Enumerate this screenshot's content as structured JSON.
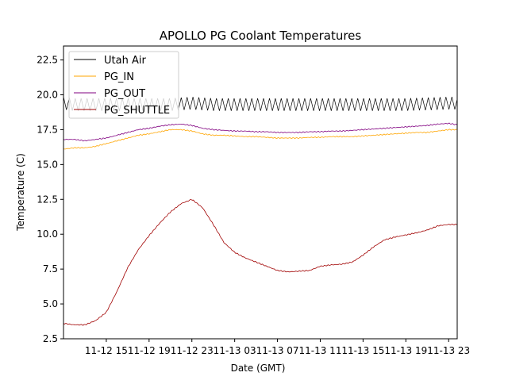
{
  "chart_data": {
    "type": "line",
    "title": "APOLLO PG Coolant Temperatures",
    "xlabel": "Date (GMT)",
    "ylabel": "Temperature (C)",
    "x_unit": "hours since 2018-11-12 11:00 GMT",
    "xlim": [
      0,
      36.8
    ],
    "ylim": [
      2.5,
      23.5
    ],
    "yticks": [
      2.5,
      5.0,
      7.5,
      10.0,
      12.5,
      15.0,
      17.5,
      20.0,
      22.5
    ],
    "ytick_labels": [
      "2.5",
      "5.0",
      "7.5",
      "10.0",
      "12.5",
      "15.0",
      "17.5",
      "20.0",
      "22.5"
    ],
    "xticks": [
      4,
      8,
      12,
      16,
      20,
      24,
      28,
      32,
      36
    ],
    "xtick_labels": [
      "11-12 15",
      "11-12 19",
      "11-12 23",
      "11-13 03",
      "11-13 07",
      "11-13 11",
      "11-13 15",
      "11-13 19",
      "11-13 23"
    ],
    "grid": false,
    "legend_location": "upper-left",
    "series": [
      {
        "name": "Utah Air",
        "color": "#000000",
        "style": "oscillating",
        "oscillation_amplitude": 0.45,
        "oscillation_period_hours": 0.55,
        "x": [
          0,
          1,
          2,
          4,
          6,
          8,
          10,
          12,
          14,
          16,
          18,
          20,
          22,
          24,
          26,
          28,
          30,
          32,
          34,
          36,
          36.8
        ],
        "values": [
          19.4,
          19.3,
          19.3,
          19.3,
          19.3,
          19.3,
          19.3,
          19.4,
          19.3,
          19.3,
          19.3,
          19.3,
          19.3,
          19.3,
          19.3,
          19.3,
          19.3,
          19.3,
          19.35,
          19.4,
          19.4
        ]
      },
      {
        "name": "PG_IN",
        "color": "#ffa500",
        "style": "line",
        "x": [
          0,
          1,
          2,
          3,
          4,
          5,
          6,
          7,
          8,
          9,
          10,
          11,
          12,
          13,
          14,
          15,
          16,
          17,
          18,
          19,
          20,
          21,
          22,
          23,
          24,
          25,
          26,
          27,
          28,
          29,
          30,
          31,
          32,
          33,
          34,
          35,
          36,
          36.8
        ],
        "values": [
          16.1,
          16.2,
          16.2,
          16.3,
          16.5,
          16.7,
          16.9,
          17.1,
          17.2,
          17.35,
          17.5,
          17.5,
          17.4,
          17.2,
          17.1,
          17.1,
          17.05,
          17.0,
          17.0,
          16.95,
          16.9,
          16.9,
          16.9,
          16.95,
          16.95,
          17.0,
          17.0,
          17.0,
          17.05,
          17.1,
          17.15,
          17.2,
          17.25,
          17.3,
          17.3,
          17.4,
          17.5,
          17.5
        ]
      },
      {
        "name": "PG_OUT",
        "color": "#800080",
        "style": "line",
        "x": [
          0,
          1,
          2,
          3,
          4,
          5,
          6,
          7,
          8,
          9,
          10,
          11,
          12,
          13,
          14,
          15,
          16,
          17,
          18,
          19,
          20,
          21,
          22,
          23,
          24,
          25,
          26,
          27,
          28,
          29,
          30,
          31,
          32,
          33,
          34,
          35,
          36,
          36.8
        ],
        "values": [
          16.8,
          16.8,
          16.7,
          16.8,
          16.9,
          17.1,
          17.3,
          17.5,
          17.6,
          17.75,
          17.85,
          17.9,
          17.8,
          17.6,
          17.5,
          17.45,
          17.4,
          17.4,
          17.35,
          17.35,
          17.3,
          17.3,
          17.3,
          17.35,
          17.35,
          17.4,
          17.4,
          17.45,
          17.5,
          17.55,
          17.6,
          17.65,
          17.7,
          17.75,
          17.8,
          17.9,
          17.95,
          17.85
        ]
      },
      {
        "name": "PG_SHUTTLE",
        "color": "#a00000",
        "style": "line",
        "x": [
          0,
          1,
          2,
          3,
          4,
          5,
          6,
          7,
          8,
          9,
          10,
          11,
          12,
          13,
          14,
          15,
          16,
          17,
          18,
          19,
          20,
          21,
          22,
          23,
          24,
          25,
          26,
          27,
          28,
          29,
          30,
          31,
          32,
          33,
          34,
          35,
          36,
          36.8
        ],
        "values": [
          3.6,
          3.5,
          3.5,
          3.8,
          4.4,
          5.9,
          7.6,
          8.9,
          9.9,
          10.8,
          11.6,
          12.2,
          12.5,
          11.9,
          10.7,
          9.4,
          8.7,
          8.3,
          8.0,
          7.7,
          7.4,
          7.3,
          7.35,
          7.4,
          7.7,
          7.8,
          7.85,
          8.0,
          8.5,
          9.1,
          9.6,
          9.8,
          9.95,
          10.1,
          10.3,
          10.6,
          10.7,
          10.7
        ]
      }
    ]
  }
}
